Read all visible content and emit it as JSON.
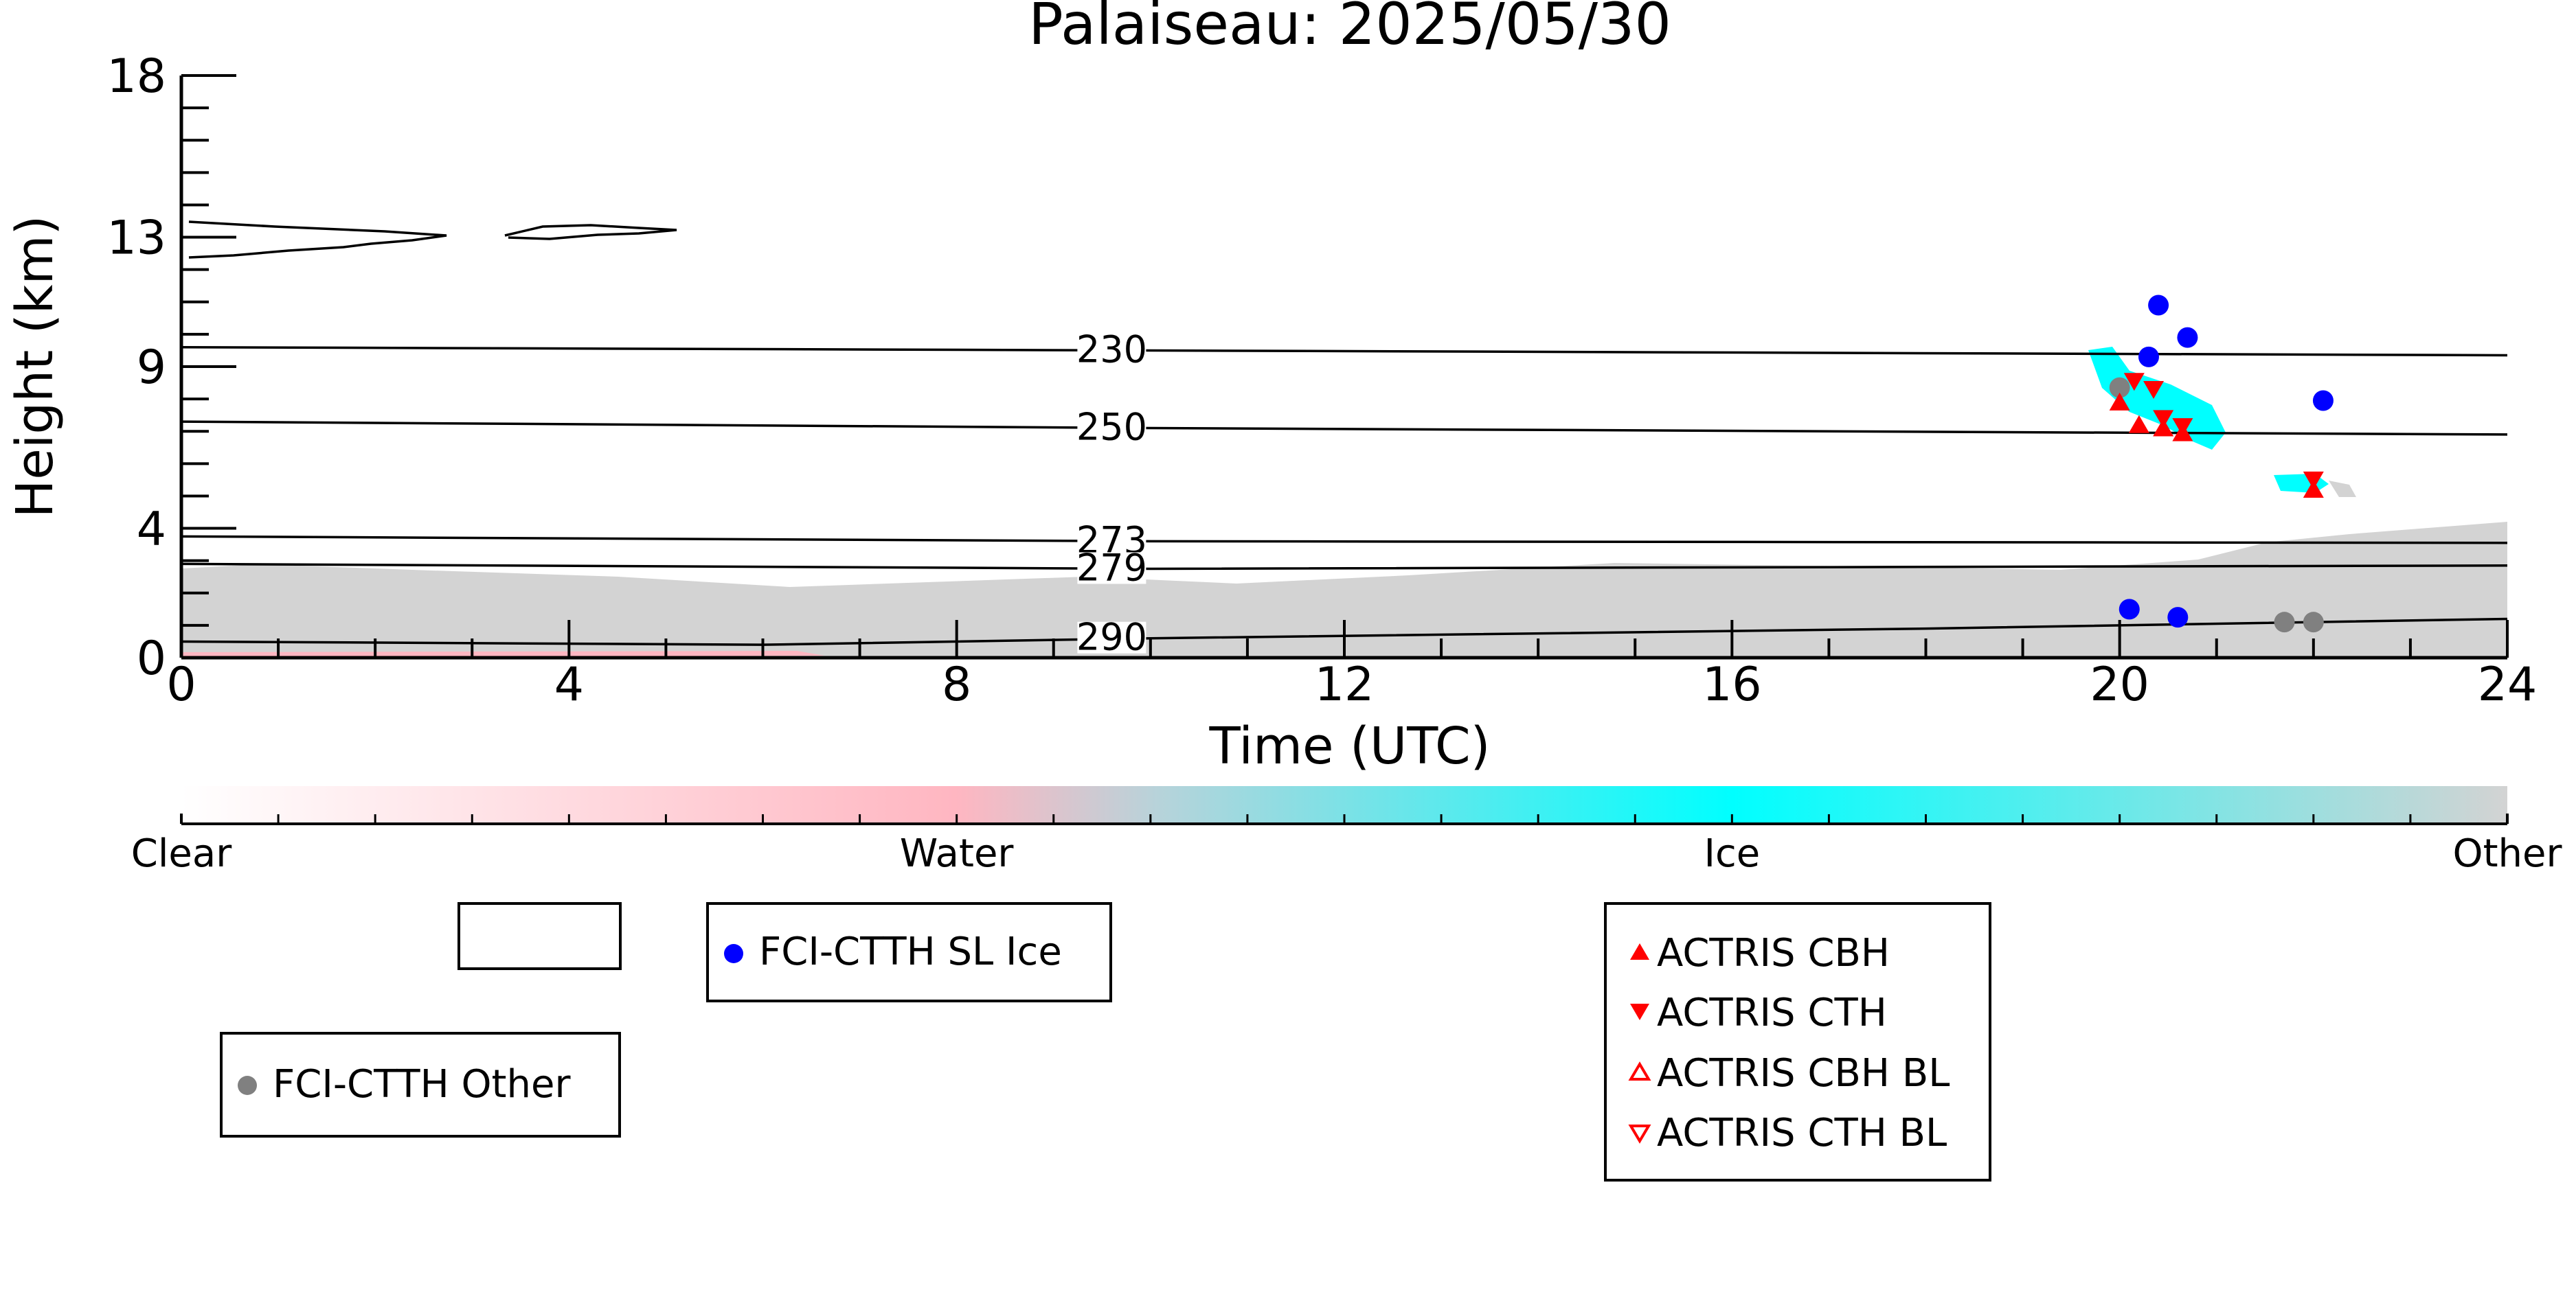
{
  "chart_data": {
    "type": "scatter",
    "title": "Palaiseau: 2025/05/30",
    "xlabel": "Time (UTC)",
    "ylabel": "Height (km)",
    "xlim": [
      0,
      24
    ],
    "ylim": [
      0,
      18
    ],
    "x_ticks": [
      0,
      4,
      8,
      12,
      16,
      20,
      24
    ],
    "y_ticks": [
      0,
      4,
      9,
      13,
      18
    ],
    "colorbar": {
      "labels": [
        "Clear",
        "Water",
        "Ice",
        "Other"
      ],
      "colors": [
        "#ffffff",
        "#ffb6c1",
        "#00ffff",
        "#d3d3d3"
      ]
    },
    "isotherms": [
      {
        "label": "230",
        "x": [
          0,
          10,
          24
        ],
        "y": [
          9.6,
          9.5,
          9.35
        ]
      },
      {
        "label": "250",
        "x": [
          0,
          10,
          24
        ],
        "y": [
          7.3,
          7.1,
          6.9
        ]
      },
      {
        "label": "273",
        "x": [
          0,
          10,
          24
        ],
        "y": [
          3.75,
          3.6,
          3.55
        ]
      },
      {
        "label": "279",
        "x": [
          0,
          10,
          24
        ],
        "y": [
          2.9,
          2.75,
          2.85
        ]
      },
      {
        "label": "290",
        "x": [
          0,
          6,
          10,
          18,
          24
        ],
        "y": [
          0.5,
          0.4,
          0.6,
          0.9,
          1.2
        ]
      }
    ],
    "series": [
      {
        "name": "FCI-CTTH SL Ice",
        "color": "#0000ff",
        "marker": "circle",
        "points": [
          [
            20.4,
            10.9
          ],
          [
            20.3,
            9.3
          ],
          [
            20.7,
            9.9
          ],
          [
            22.1,
            7.95
          ],
          [
            20.1,
            1.5
          ],
          [
            20.6,
            1.25
          ]
        ]
      },
      {
        "name": "FCI-CTTH Other",
        "color": "#808080",
        "marker": "circle",
        "points": [
          [
            20.0,
            8.35
          ],
          [
            21.7,
            1.1
          ],
          [
            22.0,
            1.1
          ]
        ]
      },
      {
        "name": "ACTRIS CBH",
        "color": "#ff0000",
        "marker": "triangle-up",
        "points": [
          [
            20.0,
            7.9
          ],
          [
            20.2,
            7.2
          ],
          [
            20.45,
            7.1
          ],
          [
            20.65,
            6.95
          ],
          [
            22.0,
            5.2
          ]
        ]
      },
      {
        "name": "ACTRIS CTH",
        "color": "#ff0000",
        "marker": "triangle-down",
        "points": [
          [
            20.15,
            8.55
          ],
          [
            20.35,
            8.3
          ],
          [
            20.45,
            7.4
          ],
          [
            20.65,
            7.15
          ],
          [
            22.0,
            5.5
          ]
        ]
      },
      {
        "name": "ACTRIS CBH BL",
        "color": "#ff0000",
        "marker": "triangle-up-open",
        "points": []
      },
      {
        "name": "ACTRIS CTH BL",
        "color": "#ff0000",
        "marker": "triangle-down-open",
        "points": []
      }
    ],
    "legends": {
      "empty_box": [],
      "sl_ice": [
        "FCI-CTTH SL Ice"
      ],
      "other": [
        "FCI-CTTH Other"
      ],
      "actris": [
        "ACTRIS CBH",
        "ACTRIS CTH",
        "ACTRIS CBH BL",
        "ACTRIS CTH BL"
      ]
    }
  }
}
